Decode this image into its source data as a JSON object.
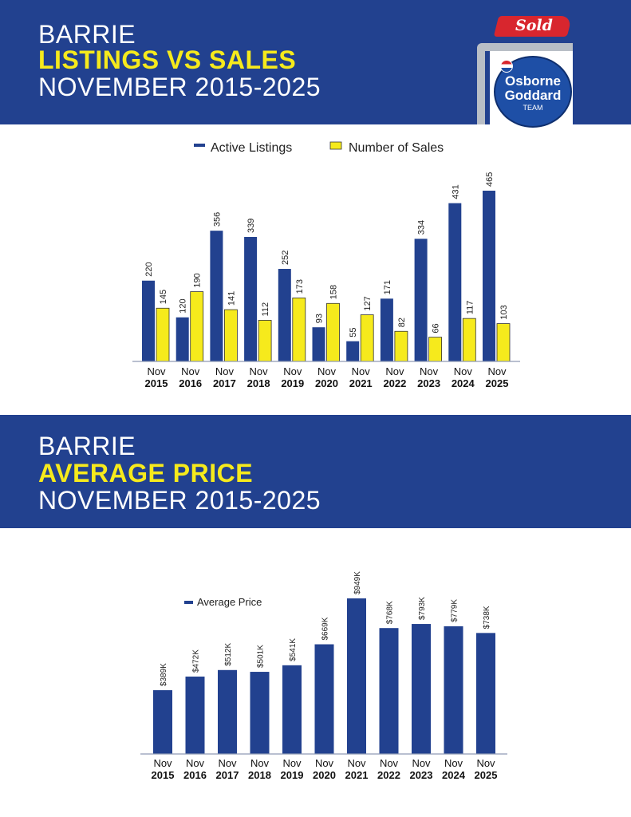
{
  "section1": {
    "city": "BARRIE",
    "highlight": "LISTINGS VS SALES",
    "period": "NOVEMBER 2015-2025"
  },
  "section2": {
    "city": "BARRIE",
    "highlight": "AVERAGE PRICE",
    "period": "NOVEMBER 2015-2025"
  },
  "logo": {
    "sold": "Sold",
    "line1": "Osborne",
    "line2": "Goddard",
    "line3": "TEAM",
    "balloon": "RE/MAX"
  },
  "colors": {
    "brand_blue": "#22418f",
    "yellow": "#f6ea1c",
    "bar_blue": "#22418f",
    "sold_red": "#d8262e"
  },
  "chart_data": [
    {
      "type": "bar",
      "categories": [
        [
          "Nov",
          "2015"
        ],
        [
          "Nov",
          "2016"
        ],
        [
          "Nov",
          "2017"
        ],
        [
          "Nov",
          "2018"
        ],
        [
          "Nov",
          "2019"
        ],
        [
          "Nov",
          "2020"
        ],
        [
          "Nov",
          "2021"
        ],
        [
          "Nov",
          "2022"
        ],
        [
          "Nov",
          "2023"
        ],
        [
          "Nov",
          "2024"
        ],
        [
          "Nov",
          "2025"
        ]
      ],
      "series": [
        {
          "name": "Active Listings",
          "color": "#22418f",
          "values": [
            220,
            120,
            356,
            339,
            252,
            93,
            55,
            171,
            334,
            431,
            465
          ]
        },
        {
          "name": "Number of Sales",
          "color": "#f6ea1c",
          "values": [
            145,
            190,
            141,
            112,
            173,
            158,
            127,
            82,
            66,
            117,
            103
          ]
        }
      ],
      "ylim": [
        0,
        500
      ],
      "grid": false,
      "legend": "top-center"
    },
    {
      "type": "bar",
      "categories": [
        [
          "Nov",
          "2015"
        ],
        [
          "Nov",
          "2016"
        ],
        [
          "Nov",
          "2017"
        ],
        [
          "Nov",
          "2018"
        ],
        [
          "Nov",
          "2019"
        ],
        [
          "Nov",
          "2020"
        ],
        [
          "Nov",
          "2021"
        ],
        [
          "Nov",
          "2022"
        ],
        [
          "Nov",
          "2023"
        ],
        [
          "Nov",
          "2024"
        ],
        [
          "Nov",
          "2025"
        ]
      ],
      "series": [
        {
          "name": "Average Price",
          "color": "#22418f",
          "values": [
            389,
            472,
            512,
            501,
            541,
            669,
            949,
            768,
            793,
            779,
            738
          ],
          "labels": [
            "$389K",
            "$472K",
            "$512K",
            "$501K",
            "$541K",
            "$669K",
            "$949K",
            "$768K",
            "$793K",
            "$779K",
            "$738K"
          ]
        }
      ],
      "ylim": [
        0,
        1000
      ],
      "grid": false,
      "legend": "top-left"
    }
  ]
}
